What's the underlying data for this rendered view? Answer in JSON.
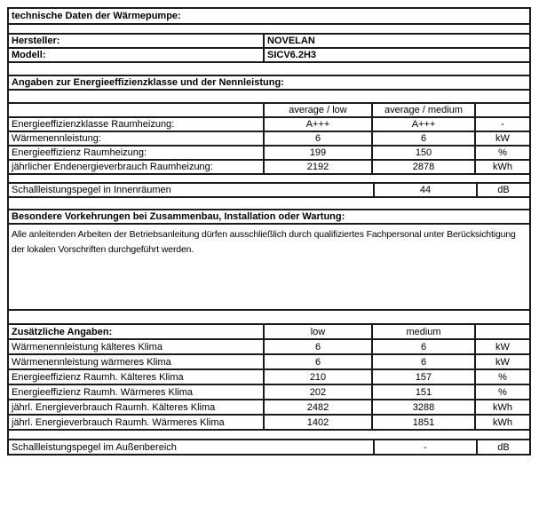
{
  "page": {
    "title": "technische Daten der Wärmepumpe:",
    "manufacturer": {
      "label": "Hersteller:",
      "value": "NOVELAN"
    },
    "model": {
      "label": "Modell:",
      "value": "SICV6.2H3"
    },
    "energy_section": {
      "title": "Angaben zur Energieeffizienzklasse und der Nennleistung:",
      "columns": {
        "low": "average / low",
        "medium": "average / medium"
      },
      "rows": [
        {
          "label": "Energieeffizienzklasse Raumheizung:",
          "low": "A+++",
          "medium": "A+++",
          "unit": "-"
        },
        {
          "label": "Wärmenennleistung:",
          "low": "6",
          "medium": "6",
          "unit": "kW"
        },
        {
          "label": "Energieeffizienz Raumheizung:",
          "low": "199",
          "medium": "150",
          "unit": "%"
        },
        {
          "label": "jährlicher Endenergieverbrauch Raumheizung:",
          "low": "2192",
          "medium": "2878",
          "unit": "kWh"
        }
      ],
      "sound_indoor": {
        "label": "Schallleistungspegel in Innenräumen",
        "value": "44",
        "unit": "dB"
      }
    },
    "precautions_section": {
      "title": "Besondere Vorkehrungen bei Zusammenbau, Installation oder Wartung:",
      "text": "Alle anleitenden Arbeiten der Betriebsanleitung dürfen ausschließlich durch qualifiziertes Fachpersonal unter Berücksichtigung der lokalen Vorschriften durchgeführt werden."
    },
    "additional_section": {
      "title": "Zusätzliche Angaben:",
      "columns": {
        "low": "low",
        "medium": "medium"
      },
      "rows": [
        {
          "label": "Wärmenennleistung kälteres Klima",
          "low": "6",
          "medium": "6",
          "unit": "kW"
        },
        {
          "label": "Wärmenennleistung wärmeres Klima",
          "low": "6",
          "medium": "6",
          "unit": "kW"
        },
        {
          "label": "Energieeffizienz Raumh. Kälteres Klima",
          "low": "210",
          "medium": "157",
          "unit": "%"
        },
        {
          "label": "Energieeffizienz Raumh. Wärmeres Klima",
          "low": "202",
          "medium": "151",
          "unit": "%"
        },
        {
          "label": "jährl. Energieverbrauch Raumh. Kälteres Klima",
          "low": "2482",
          "medium": "3288",
          "unit": "kWh"
        },
        {
          "label": "jährl. Energieverbrauch Raumh. Wärmeres Klima",
          "low": "1402",
          "medium": "1851",
          "unit": "kWh"
        }
      ],
      "sound_outdoor": {
        "label": "Schallleistungspegel im Außenbereich",
        "value": "-",
        "unit": "dB"
      }
    },
    "colors": {
      "border": "#1a1a1a",
      "text": "#000000",
      "background": "#ffffff"
    }
  }
}
